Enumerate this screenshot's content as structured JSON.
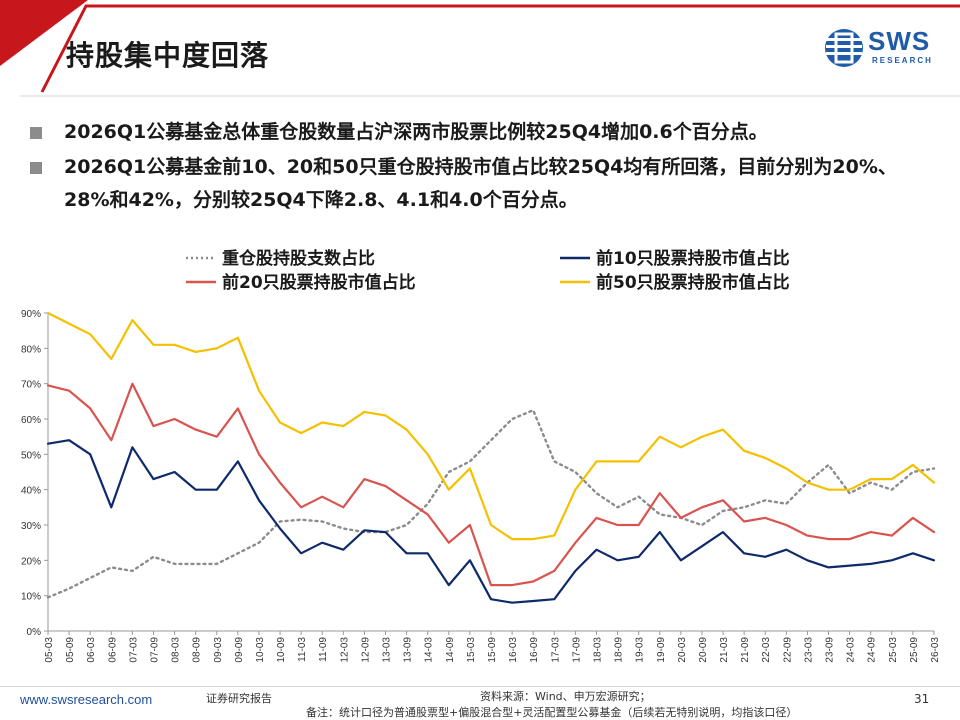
{
  "page": {
    "title": "持股集中度回落",
    "logo": {
      "text": "SWS",
      "subtext": "RESEARCH"
    },
    "bullets": [
      "2026Q1公募基金总体重仓股数量占沪深两市股票比例较25Q4增加0.6个百分点。",
      "2026Q1公募基金前10、20和50只重仓股持股市值占比较25Q4均有所回落，目前分别为20%、28%和42%，分别较25Q4下降2.8、4.1和4.0个百分点。"
    ],
    "footer": {
      "url": "www.swsresearch.com",
      "label": "证券研究报告",
      "source": "资料来源：Wind、申万宏源研究；",
      "note": "备注：统计口径为普通股票型+偏股混合型+灵活配置型公募基金（后续若无特别说明，均指该口径）",
      "page": "31"
    }
  },
  "colors": {
    "accent_red": "#c8161d",
    "count_ratio": "#8c8c8c",
    "top10": "#0f2a6b",
    "top20": "#d9534f",
    "top50": "#f5c000"
  },
  "chart_data": {
    "type": "line",
    "ylim": [
      0,
      90
    ],
    "yticks": [
      "0%",
      "10%",
      "20%",
      "30%",
      "40%",
      "50%",
      "60%",
      "70%",
      "80%",
      "90%"
    ],
    "categories": [
      "05-03",
      "05-09",
      "06-03",
      "06-09",
      "07-03",
      "07-09",
      "08-03",
      "08-09",
      "09-03",
      "09-09",
      "10-03",
      "10-09",
      "11-03",
      "11-09",
      "12-03",
      "12-09",
      "13-03",
      "13-09",
      "14-03",
      "14-09",
      "15-03",
      "15-09",
      "16-03",
      "16-09",
      "17-03",
      "17-09",
      "18-03",
      "18-09",
      "19-03",
      "19-09",
      "20-03",
      "20-09",
      "21-03",
      "21-09",
      "22-03",
      "22-09",
      "23-03",
      "23-09",
      "24-03",
      "24-09",
      "25-03",
      "25-09",
      "26-03"
    ],
    "series": [
      {
        "name": "重仓股持股支数占比",
        "style": "dotted",
        "values": [
          9.5,
          12,
          15,
          18,
          17,
          21,
          19,
          19,
          19,
          22,
          25,
          31,
          31.5,
          31,
          29,
          28,
          28,
          30,
          36,
          45,
          48,
          54,
          60,
          62.5,
          48,
          45,
          39,
          35,
          38,
          33,
          32,
          30,
          34,
          35,
          37,
          36,
          42,
          47,
          39,
          42,
          40,
          45,
          46
        ]
      },
      {
        "name": "前10只股票持股市值占比",
        "style": "solid",
        "values": [
          53,
          54,
          50,
          35,
          52,
          43,
          45,
          40,
          40,
          48,
          37,
          29,
          22,
          25,
          23,
          28.5,
          28,
          22,
          22,
          13,
          20,
          9,
          8,
          8.5,
          9,
          17,
          23,
          20,
          21,
          28,
          20,
          24,
          28,
          22,
          21,
          23,
          20,
          18,
          18.5,
          19,
          20,
          22,
          20
        ]
      },
      {
        "name": "前20只股票持股市值占比",
        "style": "solid",
        "values": [
          69.5,
          68,
          63,
          54,
          70,
          58,
          60,
          57,
          55,
          63,
          50,
          42,
          35,
          38,
          35,
          43,
          41,
          37,
          33,
          25,
          30,
          13,
          13,
          14,
          17,
          25,
          32,
          30,
          30,
          39,
          32,
          35,
          37,
          31,
          32,
          30,
          27,
          26,
          26,
          28,
          27,
          32,
          28
        ]
      },
      {
        "name": "前50只股票持股市值占比",
        "style": "solid",
        "values": [
          90,
          87,
          84,
          77,
          88,
          81,
          81,
          79,
          80,
          83,
          68,
          59,
          56,
          59,
          58,
          62,
          61,
          57,
          50,
          40,
          46,
          30,
          26,
          26,
          27,
          40,
          48,
          48,
          48,
          55,
          52,
          55,
          57,
          51,
          49,
          46,
          42,
          40,
          40,
          43,
          43,
          47,
          42
        ]
      }
    ]
  }
}
